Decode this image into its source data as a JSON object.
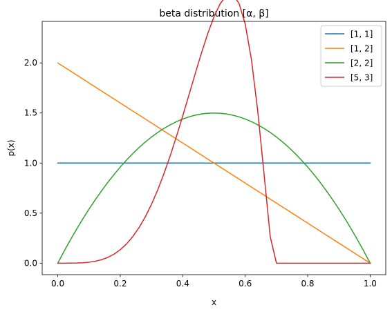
{
  "chart_data": {
    "type": "line",
    "title": "beta distribution [α, β]",
    "xlabel": "x",
    "ylabel": "p(x)",
    "xlim": [
      -0.05,
      1.05
    ],
    "ylim": [
      -0.115,
      2.415
    ],
    "xticks": [
      0.0,
      0.2,
      0.4,
      0.6,
      0.8,
      1.0
    ],
    "xtick_labels": [
      "0.0",
      "0.2",
      "0.4",
      "0.6",
      "0.8",
      "1.0"
    ],
    "yticks": [
      0.0,
      0.5,
      1.0,
      1.5,
      2.0
    ],
    "ytick_labels": [
      "0.0",
      "0.5",
      "1.0",
      "1.5",
      "2.0"
    ],
    "grid": false,
    "legend_position": "top-right",
    "x": [
      0.0,
      0.02,
      0.04,
      0.06,
      0.08,
      0.1,
      0.12,
      0.14,
      0.16,
      0.18,
      0.2,
      0.22,
      0.24,
      0.26,
      0.28,
      0.3,
      0.32,
      0.34,
      0.36,
      0.38,
      0.4,
      0.42,
      0.44,
      0.46,
      0.48,
      0.5,
      0.52,
      0.54,
      0.56,
      0.58,
      0.6,
      0.62,
      0.64,
      0.66,
      0.68,
      0.7,
      0.72,
      0.74,
      0.76,
      0.78,
      0.8,
      0.82,
      0.84,
      0.86,
      0.88,
      0.9,
      0.92,
      0.94,
      0.96,
      0.98,
      1.0
    ],
    "series": [
      {
        "name": "[1, 1]",
        "color": "#1f77b4",
        "values": [
          1,
          1,
          1,
          1,
          1,
          1,
          1,
          1,
          1,
          1,
          1,
          1,
          1,
          1,
          1,
          1,
          1,
          1,
          1,
          1,
          1,
          1,
          1,
          1,
          1,
          1,
          1,
          1,
          1,
          1,
          1,
          1,
          1,
          1,
          1,
          1,
          1,
          1,
          1,
          1,
          1,
          1,
          1,
          1,
          1,
          1,
          1,
          1,
          1,
          1,
          1
        ]
      },
      {
        "name": "[1, 2]",
        "color": "#ff7f0e",
        "values": [
          2.0,
          1.96,
          1.92,
          1.88,
          1.84,
          1.8,
          1.76,
          1.72,
          1.68,
          1.64,
          1.6,
          1.56,
          1.52,
          1.48,
          1.44,
          1.4,
          1.36,
          1.32,
          1.28,
          1.24,
          1.2,
          1.16,
          1.12,
          1.08,
          1.04,
          1.0,
          0.96,
          0.92,
          0.88,
          0.84,
          0.8,
          0.76,
          0.72,
          0.68,
          0.64,
          0.6,
          0.56,
          0.52,
          0.48,
          0.44,
          0.4,
          0.36,
          0.32,
          0.28,
          0.24,
          0.2,
          0.16,
          0.12,
          0.08,
          0.04,
          0.0
        ]
      },
      {
        "name": "[2, 2]",
        "color": "#2ca02c",
        "values": [
          0.0,
          0.1176,
          0.2304,
          0.3384,
          0.4416,
          0.54,
          0.6336,
          0.7224,
          0.8064,
          0.8856,
          0.96,
          1.0296,
          1.0944,
          1.1544,
          1.2096,
          1.26,
          1.3056,
          1.3464,
          1.3824,
          1.4136,
          1.44,
          1.4616,
          1.4784,
          1.4904,
          1.4976,
          1.5,
          1.4976,
          1.4904,
          1.4784,
          1.4616,
          1.44,
          1.4136,
          1.3824,
          1.3464,
          1.3056,
          1.26,
          1.2096,
          1.1544,
          1.0944,
          1.0296,
          0.96,
          0.8856,
          0.8064,
          0.7224,
          0.6336,
          0.54,
          0.4416,
          0.3384,
          0.2304,
          0.1176,
          0.0
        ]
      },
      {
        "name": "[5, 3]",
        "color": "#d62728",
        "values": [
          0.0,
          0.0,
          0.0002,
          0.0013,
          0.0041,
          0.0095,
          0.0191,
          0.0344,
          0.0574,
          0.0901,
          0.1344,
          0.1922,
          0.2652,
          0.3548,
          0.4624,
          0.5884,
          0.733,
          0.8954,
          1.0743,
          1.2674,
          1.4715,
          1.6822,
          1.8939,
          2.1,
          2.2925,
          2.4609,
          2.5926,
          2.6722,
          2.6811,
          2.5962,
          2.3887,
          2.0313,
          1.5221,
          0.8999,
          0.2654,
          0.0,
          0.0,
          0.0,
          0.0,
          0.0,
          0.0,
          0.0,
          0.0,
          0.0,
          0.0,
          0.0,
          0.0,
          0.0,
          0.0,
          0.0,
          0.0
        ]
      }
    ]
  }
}
